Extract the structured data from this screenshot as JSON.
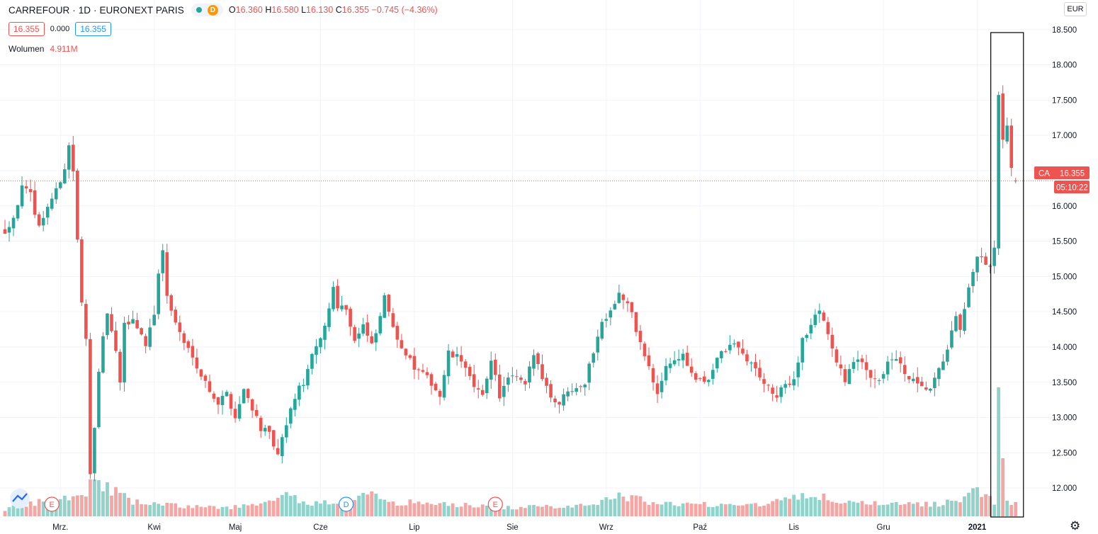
{
  "header": {
    "symbol_title": "CARREFOUR · 1D · EURONEXT PARIS",
    "interval_badge": "D",
    "ohlc": {
      "open_label": "O",
      "open": "16.360",
      "high_label": "H",
      "high": "16.580",
      "low_label": "L",
      "low": "16.130",
      "close_label": "C",
      "close": "16.355",
      "change": "−0.745 (−4.36%)"
    },
    "bid": "16.355",
    "spread": "0.000",
    "ask": "16.355",
    "volume_label": "Wolumen",
    "volume_value": "4.911M"
  },
  "axis": {
    "currency": "EUR",
    "last_price_tag": "CA",
    "last_price": "16.355",
    "countdown": "05:10:22"
  },
  "colors": {
    "up": "#26a69a",
    "down": "#ef5350",
    "up_volume": "#8fd3cb",
    "down_volume": "#f4a6a4",
    "grid": "#f0f3fa",
    "highlight_box": "#000000"
  },
  "chart_data": {
    "type": "candlestick",
    "ylim": [
      11.6,
      18.6
    ],
    "y_ticks": [
      12.0,
      12.5,
      13.0,
      13.5,
      14.0,
      14.5,
      15.0,
      15.5,
      16.0,
      16.5,
      17.0,
      17.5,
      18.0,
      18.5
    ],
    "y_tick_labels": [
      "12.000",
      "12.500",
      "13.000",
      "13.500",
      "14.000",
      "14.500",
      "15.000",
      "15.500",
      "16.000",
      "16.500",
      "17.000",
      "17.500",
      "18.000",
      "18.500"
    ],
    "x_labels": [
      {
        "label": "Mrz.",
        "index": 13
      },
      {
        "label": "Kwi",
        "index": 35
      },
      {
        "label": "Maj",
        "index": 54
      },
      {
        "label": "Cze",
        "index": 74
      },
      {
        "label": "Lip",
        "index": 96
      },
      {
        "label": "Sie",
        "index": 119
      },
      {
        "label": "Wrz",
        "index": 141
      },
      {
        "label": "Paź",
        "index": 163
      },
      {
        "label": "Lis",
        "index": 185
      },
      {
        "label": "Gru",
        "index": 206
      },
      {
        "label": "2021",
        "index": 228
      }
    ],
    "last_price_line": 16.355,
    "events": [
      {
        "label": "E",
        "index": 11
      },
      {
        "label": "D",
        "index": 80
      },
      {
        "label": "E",
        "index": 115
      }
    ],
    "highlight_range": [
      232,
      238
    ],
    "price_path": [
      [
        0,
        15.65
      ],
      [
        2,
        15.85
      ],
      [
        4,
        16.25
      ],
      [
        6,
        16.15
      ],
      [
        8,
        15.7
      ],
      [
        10,
        16.0
      ],
      [
        12,
        16.2
      ],
      [
        14,
        16.55
      ],
      [
        15,
        16.85
      ],
      [
        16,
        16.5
      ],
      [
        17,
        15.5
      ],
      [
        18,
        14.6
      ],
      [
        19,
        14.1
      ],
      [
        20,
        12.25
      ],
      [
        21,
        12.9
      ],
      [
        22,
        13.6
      ],
      [
        23,
        14.1
      ],
      [
        24,
        14.5
      ],
      [
        26,
        13.9
      ],
      [
        27,
        13.5
      ],
      [
        28,
        14.3
      ],
      [
        30,
        14.4
      ],
      [
        33,
        14.05
      ],
      [
        35,
        14.5
      ],
      [
        36,
        15.0
      ],
      [
        37,
        15.4
      ],
      [
        38,
        14.7
      ],
      [
        40,
        14.35
      ],
      [
        42,
        14.05
      ],
      [
        44,
        13.9
      ],
      [
        46,
        13.6
      ],
      [
        48,
        13.4
      ],
      [
        50,
        13.2
      ],
      [
        52,
        13.35
      ],
      [
        54,
        13.0
      ],
      [
        56,
        13.4
      ],
      [
        58,
        13.15
      ],
      [
        60,
        12.85
      ],
      [
        62,
        12.75
      ],
      [
        64,
        12.45
      ],
      [
        66,
        12.9
      ],
      [
        68,
        13.3
      ],
      [
        70,
        13.5
      ],
      [
        72,
        13.85
      ],
      [
        74,
        14.1
      ],
      [
        76,
        14.55
      ],
      [
        77,
        14.85
      ],
      [
        78,
        14.6
      ],
      [
        80,
        14.55
      ],
      [
        82,
        14.1
      ],
      [
        84,
        14.3
      ],
      [
        86,
        14.0
      ],
      [
        88,
        14.4
      ],
      [
        89,
        14.75
      ],
      [
        90,
        14.45
      ],
      [
        92,
        14.15
      ],
      [
        94,
        13.9
      ],
      [
        96,
        13.7
      ],
      [
        98,
        13.6
      ],
      [
        100,
        13.5
      ],
      [
        102,
        13.3
      ],
      [
        104,
        13.9
      ],
      [
        106,
        13.85
      ],
      [
        108,
        13.75
      ],
      [
        110,
        13.4
      ],
      [
        112,
        13.3
      ],
      [
        114,
        13.85
      ],
      [
        116,
        13.3
      ],
      [
        118,
        13.55
      ],
      [
        120,
        13.55
      ],
      [
        122,
        13.45
      ],
      [
        124,
        13.9
      ],
      [
        126,
        13.6
      ],
      [
        128,
        13.3
      ],
      [
        130,
        13.2
      ],
      [
        132,
        13.4
      ],
      [
        134,
        13.45
      ],
      [
        136,
        13.5
      ],
      [
        138,
        13.95
      ],
      [
        140,
        14.35
      ],
      [
        142,
        14.55
      ],
      [
        144,
        14.75
      ],
      [
        146,
        14.6
      ],
      [
        147,
        14.45
      ],
      [
        149,
        14.05
      ],
      [
        151,
        13.7
      ],
      [
        153,
        13.3
      ],
      [
        155,
        13.75
      ],
      [
        157,
        13.8
      ],
      [
        159,
        13.9
      ],
      [
        161,
        13.6
      ],
      [
        163,
        13.5
      ],
      [
        165,
        13.55
      ],
      [
        167,
        13.85
      ],
      [
        169,
        13.95
      ],
      [
        171,
        14.05
      ],
      [
        173,
        13.9
      ],
      [
        175,
        13.75
      ],
      [
        177,
        13.6
      ],
      [
        179,
        13.4
      ],
      [
        181,
        13.3
      ],
      [
        183,
        13.45
      ],
      [
        185,
        13.55
      ],
      [
        187,
        14.1
      ],
      [
        189,
        14.3
      ],
      [
        191,
        14.55
      ],
      [
        193,
        14.2
      ],
      [
        195,
        13.75
      ],
      [
        197,
        13.55
      ],
      [
        199,
        13.8
      ],
      [
        201,
        13.75
      ],
      [
        203,
        13.6
      ],
      [
        205,
        13.55
      ],
      [
        207,
        13.75
      ],
      [
        209,
        13.85
      ],
      [
        211,
        13.6
      ],
      [
        213,
        13.5
      ],
      [
        215,
        13.4
      ],
      [
        217,
        13.4
      ],
      [
        219,
        13.65
      ],
      [
        221,
        14.0
      ],
      [
        223,
        14.4
      ],
      [
        224,
        14.2
      ],
      [
        226,
        14.8
      ],
      [
        228,
        15.3
      ],
      [
        229,
        15.25
      ],
      [
        230,
        15.15
      ],
      [
        231,
        15.1
      ],
      [
        232,
        15.4
      ],
      [
        233,
        17.55
      ],
      [
        234,
        16.9
      ],
      [
        235,
        17.1
      ],
      [
        236,
        16.5
      ],
      [
        237,
        16.355
      ]
    ],
    "volume_path": [
      [
        0,
        10
      ],
      [
        10,
        22
      ],
      [
        16,
        28
      ],
      [
        19,
        36
      ],
      [
        20,
        48
      ],
      [
        24,
        42
      ],
      [
        30,
        20
      ],
      [
        40,
        15
      ],
      [
        50,
        12
      ],
      [
        60,
        16
      ],
      [
        66,
        28
      ],
      [
        73,
        18
      ],
      [
        80,
        22
      ],
      [
        86,
        30
      ],
      [
        92,
        20
      ],
      [
        100,
        18
      ],
      [
        110,
        15
      ],
      [
        118,
        12
      ],
      [
        130,
        14
      ],
      [
        140,
        20
      ],
      [
        143,
        30
      ],
      [
        150,
        22
      ],
      [
        160,
        16
      ],
      [
        170,
        18
      ],
      [
        180,
        18
      ],
      [
        184,
        32
      ],
      [
        190,
        28
      ],
      [
        200,
        18
      ],
      [
        210,
        16
      ],
      [
        220,
        18
      ],
      [
        224,
        26
      ],
      [
        228,
        36
      ],
      [
        230,
        30
      ],
      [
        232,
        16
      ],
      [
        233,
        182
      ],
      [
        234,
        82
      ],
      [
        235,
        22
      ],
      [
        236,
        16
      ],
      [
        237,
        20
      ]
    ]
  }
}
